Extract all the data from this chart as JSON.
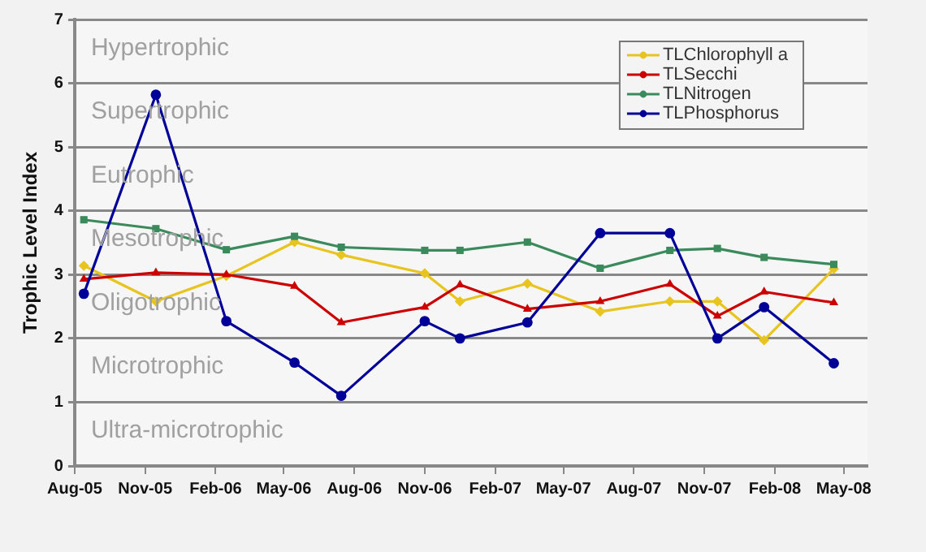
{
  "chart_data": {
    "type": "line",
    "ylabel": "Trophic Level Index",
    "x": [
      "2005-08-13",
      "2005-11-15",
      "2006-02-15",
      "2006-05-15",
      "2006-07-15",
      "2006-11-01",
      "2006-12-17",
      "2007-03-15",
      "2007-06-18",
      "2007-09-17",
      "2007-11-18",
      "2008-01-18",
      "2008-04-18"
    ],
    "series": [
      {
        "name": "TLChlorophyll a",
        "color": "#e8c420",
        "marker": "diamond",
        "values": [
          3.14,
          2.58,
          2.98,
          3.51,
          3.31,
          3.02,
          2.58,
          2.86,
          2.42,
          2.58,
          2.58,
          1.97,
          3.09
        ]
      },
      {
        "name": "TLSecchi",
        "color": "#cc0000",
        "marker": "triangle",
        "values": [
          2.93,
          3.03,
          3.0,
          2.82,
          2.25,
          2.49,
          2.84,
          2.46,
          2.58,
          2.85,
          2.35,
          2.73,
          2.56
        ]
      },
      {
        "name": "TLNitrogen",
        "color": "#3a8a5c",
        "marker": "square",
        "values": [
          3.86,
          3.72,
          3.39,
          3.6,
          3.43,
          3.38,
          3.38,
          3.51,
          3.1,
          3.38,
          3.41,
          3.27,
          3.16
        ]
      },
      {
        "name": "TLPhosphorus",
        "color": "#000099",
        "marker": "circle",
        "values": [
          2.7,
          5.82,
          2.27,
          1.62,
          1.1,
          2.27,
          2.0,
          2.25,
          3.65,
          3.65,
          2.0,
          2.49,
          1.61
        ]
      }
    ],
    "xlim": [
      "2005-08-01",
      "2008-06-01"
    ],
    "xticks": [
      {
        "value": "2005-08-01",
        "label": "Aug-05"
      },
      {
        "value": "2005-11-01",
        "label": "Nov-05"
      },
      {
        "value": "2006-02-01",
        "label": "Feb-06"
      },
      {
        "value": "2006-05-01",
        "label": "May-06"
      },
      {
        "value": "2006-08-01",
        "label": "Aug-06"
      },
      {
        "value": "2006-11-01",
        "label": "Nov-06"
      },
      {
        "value": "2007-02-01",
        "label": "Feb-07"
      },
      {
        "value": "2007-05-01",
        "label": "May-07"
      },
      {
        "value": "2007-08-01",
        "label": "Aug-07"
      },
      {
        "value": "2007-11-01",
        "label": "Nov-07"
      },
      {
        "value": "2008-02-01",
        "label": "Feb-08"
      },
      {
        "value": "2008-05-01",
        "label": "May-08"
      }
    ],
    "ylim": [
      0,
      7
    ],
    "yticks": [
      0,
      1,
      2,
      3,
      4,
      5,
      6,
      7
    ],
    "annotations": [
      "Hypertrophic",
      "Supertrophic",
      "Eutrophic",
      "Mesotrophic",
      "Oligotrophic",
      "Microtrophic",
      "Ultra-microtrophic"
    ],
    "grid": "y",
    "legend": "top right",
    "line_style": "solid"
  }
}
